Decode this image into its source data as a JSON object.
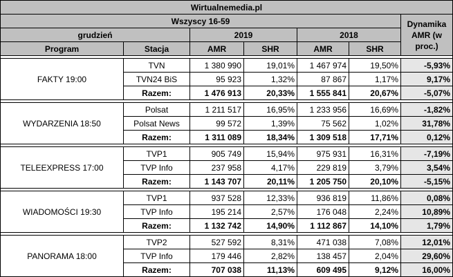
{
  "header": {
    "site": "Wirtualnemedia.pl",
    "group": "Wszyscy 16-59",
    "period": "grudzień",
    "year_current": "2019",
    "year_previous": "2018",
    "dynamics_label": "Dynamika AMR (w proc.)"
  },
  "columns": {
    "program": "Program",
    "station": "Stacja",
    "amr_2019": "AMR",
    "shr_2019": "SHR",
    "amr_2018": "AMR",
    "shr_2018": "SHR"
  },
  "groups": [
    {
      "program": "FAKTY 19:00",
      "rows": [
        {
          "station": "TVN",
          "amr_2019": "1 380 990",
          "shr_2019": "19,01%",
          "amr_2018": "1 467 974",
          "shr_2018": "19,50%",
          "dynamics": "-5,93%"
        },
        {
          "station": "TVN24 BiS",
          "amr_2019": "95 923",
          "shr_2019": "1,32%",
          "amr_2018": "87 867",
          "shr_2018": "1,17%",
          "dynamics": "9,17%"
        },
        {
          "station": "Razem:",
          "amr_2019": "1 476 913",
          "shr_2019": "20,33%",
          "amr_2018": "1 555 841",
          "shr_2018": "20,67%",
          "dynamics": "-5,07%"
        }
      ]
    },
    {
      "program": "WYDARZENIA 18:50",
      "rows": [
        {
          "station": "Polsat",
          "amr_2019": "1 211 517",
          "shr_2019": "16,95%",
          "amr_2018": "1 233 956",
          "shr_2018": "16,69%",
          "dynamics": "-1,82%"
        },
        {
          "station": "Polsat News",
          "amr_2019": "99 572",
          "shr_2019": "1,39%",
          "amr_2018": "75 562",
          "shr_2018": "1,02%",
          "dynamics": "31,78%"
        },
        {
          "station": "Razem:",
          "amr_2019": "1 311 089",
          "shr_2019": "18,34%",
          "amr_2018": "1 309 518",
          "shr_2018": "17,71%",
          "dynamics": "0,12%"
        }
      ]
    },
    {
      "program": "TELEEXPRESS 17:00",
      "rows": [
        {
          "station": "TVP1",
          "amr_2019": "905 749",
          "shr_2019": "15,94%",
          "amr_2018": "975 931",
          "shr_2018": "16,31%",
          "dynamics": "-7,19%"
        },
        {
          "station": "TVP Info",
          "amr_2019": "237 958",
          "shr_2019": "4,17%",
          "amr_2018": "229 819",
          "shr_2018": "3,79%",
          "dynamics": "3,54%"
        },
        {
          "station": "Razem:",
          "amr_2019": "1 143 707",
          "shr_2019": "20,11%",
          "amr_2018": "1 205 750",
          "shr_2018": "20,10%",
          "dynamics": "-5,15%"
        }
      ]
    },
    {
      "program": "WIADOMOŚCI 19:30",
      "rows": [
        {
          "station": "TVP1",
          "amr_2019": "937 528",
          "shr_2019": "12,33%",
          "amr_2018": "936 819",
          "shr_2018": "11,86%",
          "dynamics": "0,08%"
        },
        {
          "station": "TVP Info",
          "amr_2019": "195 214",
          "shr_2019": "2,57%",
          "amr_2018": "176 048",
          "shr_2018": "2,24%",
          "dynamics": "10,89%"
        },
        {
          "station": "Razem:",
          "amr_2019": "1 132 742",
          "shr_2019": "14,90%",
          "amr_2018": "1 112 867",
          "shr_2018": "14,10%",
          "dynamics": "1,79%"
        }
      ]
    },
    {
      "program": "PANORAMA 18:00",
      "rows": [
        {
          "station": "TVP2",
          "amr_2019": "527 592",
          "shr_2019": "8,31%",
          "amr_2018": "471 038",
          "shr_2018": "7,08%",
          "dynamics": "12,01%"
        },
        {
          "station": "TVP Info",
          "amr_2019": "179 446",
          "shr_2019": "2,82%",
          "amr_2018": "138 457",
          "shr_2018": "2,04%",
          "dynamics": "29,60%"
        },
        {
          "station": "Razem:",
          "amr_2019": "707 038",
          "shr_2019": "11,13%",
          "amr_2018": "609 495",
          "shr_2018": "9,12%",
          "dynamics": "16,00%"
        }
      ]
    }
  ]
}
